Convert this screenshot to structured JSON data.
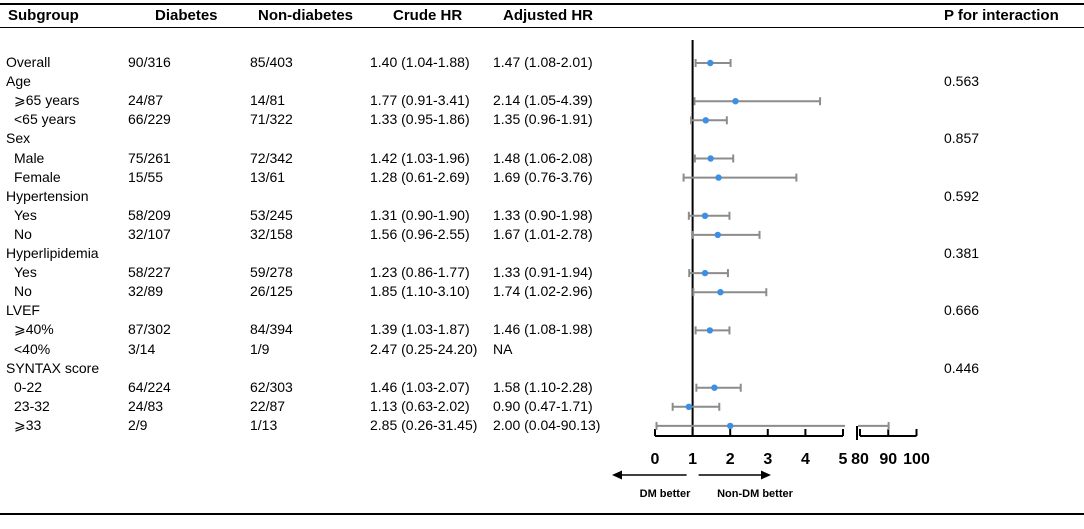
{
  "headers": {
    "subgroup": "Subgroup",
    "diabetes": "Diabetes",
    "nondiabetes": "Non-diabetes",
    "crude": "Crude HR",
    "adjusted": "Adjusted HR",
    "pint": "P for interaction"
  },
  "rows": [
    {
      "label": "Overall",
      "indent": false,
      "diabetes": "90/316",
      "nondiabetes": "85/403",
      "crude": "1.40 (1.04-1.88)",
      "adjusted": "1.47 (1.08-2.01)",
      "p": ""
    },
    {
      "label": "Age",
      "indent": false,
      "diabetes": "",
      "nondiabetes": "",
      "crude": "",
      "adjusted": "",
      "p": "0.563"
    },
    {
      "label": "⩾65 years",
      "indent": true,
      "diabetes": "24/87",
      "nondiabetes": "14/81",
      "crude": "1.77 (0.91-3.41)",
      "adjusted": "2.14 (1.05-4.39)",
      "p": ""
    },
    {
      "label": "<65 years",
      "indent": true,
      "diabetes": "66/229",
      "nondiabetes": "71/322",
      "crude": "1.33 (0.95-1.86)",
      "adjusted": "1.35 (0.96-1.91)",
      "p": ""
    },
    {
      "label": "Sex",
      "indent": false,
      "diabetes": "",
      "nondiabetes": "",
      "crude": "",
      "adjusted": "",
      "p": "0.857"
    },
    {
      "label": "Male",
      "indent": true,
      "diabetes": "75/261",
      "nondiabetes": "72/342",
      "crude": "1.42 (1.03-1.96)",
      "adjusted": "1.48 (1.06-2.08)",
      "p": ""
    },
    {
      "label": "Female",
      "indent": true,
      "diabetes": "15/55",
      "nondiabetes": "13/61",
      "crude": "1.28 (0.61-2.69)",
      "adjusted": "1.69 (0.76-3.76)",
      "p": ""
    },
    {
      "label": "Hypertension",
      "indent": false,
      "diabetes": "",
      "nondiabetes": "",
      "crude": "",
      "adjusted": "",
      "p": "0.592"
    },
    {
      "label": "Yes",
      "indent": true,
      "diabetes": "58/209",
      "nondiabetes": "53/245",
      "crude": "1.31 (0.90-1.90)",
      "adjusted": "1.33 (0.90-1.98)",
      "p": ""
    },
    {
      "label": "No",
      "indent": true,
      "diabetes": "32/107",
      "nondiabetes": "32/158",
      "crude": "1.56 (0.96-2.55)",
      "adjusted": "1.67 (1.01-2.78)",
      "p": ""
    },
    {
      "label": "Hyperlipidemia",
      "indent": false,
      "diabetes": "",
      "nondiabetes": "",
      "crude": "",
      "adjusted": "",
      "p": "0.381"
    },
    {
      "label": "Yes",
      "indent": true,
      "diabetes": "58/227",
      "nondiabetes": "59/278",
      "crude": "1.23 (0.86-1.77)",
      "adjusted": "1.33 (0.91-1.94)",
      "p": ""
    },
    {
      "label": "No",
      "indent": true,
      "diabetes": "32/89",
      "nondiabetes": "26/125",
      "crude": "1.85 (1.10-3.10)",
      "adjusted": "1.74 (1.02-2.96)",
      "p": ""
    },
    {
      "label": "LVEF",
      "indent": false,
      "diabetes": "",
      "nondiabetes": "",
      "crude": "",
      "adjusted": "",
      "p": "0.666"
    },
    {
      "label": "⩾40%",
      "indent": true,
      "diabetes": "87/302",
      "nondiabetes": "84/394",
      "crude": "1.39 (1.03-1.87)",
      "adjusted": "1.46 (1.08-1.98)",
      "p": ""
    },
    {
      "label": "<40%",
      "indent": true,
      "diabetes": "3/14",
      "nondiabetes": "1/9",
      "crude": "2.47 (0.25-24.20)",
      "adjusted": "NA",
      "p": ""
    },
    {
      "label": "SYNTAX score",
      "indent": false,
      "diabetes": "",
      "nondiabetes": "",
      "crude": "",
      "adjusted": "",
      "p": "0.446"
    },
    {
      "label": "0-22",
      "indent": true,
      "diabetes": "64/224",
      "nondiabetes": "62/303",
      "crude": "1.46 (1.03-2.07)",
      "adjusted": "1.58 (1.10-2.28)",
      "p": ""
    },
    {
      "label": "23-32",
      "indent": true,
      "diabetes": "24/83",
      "nondiabetes": "22/87",
      "crude": "1.13 (0.63-2.02)",
      "adjusted": "0.90 (0.47-1.71)",
      "p": ""
    },
    {
      "label": "⩾33",
      "indent": true,
      "diabetes": "2/9",
      "nondiabetes": "1/13",
      "crude": "2.85 (0.26-31.45)",
      "adjusted": "2.00 (0.04-90.13)",
      "p": ""
    }
  ],
  "chart_data": {
    "type": "forest",
    "title": "",
    "xlabel": "",
    "reference_line": 1,
    "axis_segments": [
      {
        "ticks": [
          0,
          1,
          2,
          3,
          4,
          5
        ],
        "range": [
          0,
          5
        ]
      },
      {
        "ticks": [
          80,
          90,
          100
        ],
        "range": [
          80,
          100
        ]
      }
    ],
    "tick_labels": [
      "0",
      "1",
      "2",
      "3",
      "4",
      "5",
      "80",
      "90",
      "100"
    ],
    "direction_labels": {
      "left": "DM better",
      "right": "Non-DM better"
    },
    "point_color": "#3d8fe6",
    "ci_color": "#8c8c8c",
    "estimates": [
      {
        "row": 0,
        "hr": 1.47,
        "low": 1.08,
        "high": 2.01
      },
      {
        "row": 2,
        "hr": 2.14,
        "low": 1.05,
        "high": 4.39
      },
      {
        "row": 3,
        "hr": 1.35,
        "low": 0.96,
        "high": 1.91
      },
      {
        "row": 5,
        "hr": 1.48,
        "low": 1.06,
        "high": 2.08
      },
      {
        "row": 6,
        "hr": 1.69,
        "low": 0.76,
        "high": 3.76
      },
      {
        "row": 8,
        "hr": 1.33,
        "low": 0.9,
        "high": 1.98
      },
      {
        "row": 9,
        "hr": 1.67,
        "low": 1.01,
        "high": 2.78
      },
      {
        "row": 11,
        "hr": 1.33,
        "low": 0.91,
        "high": 1.94
      },
      {
        "row": 12,
        "hr": 1.74,
        "low": 1.02,
        "high": 2.96
      },
      {
        "row": 14,
        "hr": 1.46,
        "low": 1.08,
        "high": 1.98
      },
      {
        "row": 17,
        "hr": 1.58,
        "low": 1.1,
        "high": 2.28
      },
      {
        "row": 18,
        "hr": 0.9,
        "low": 0.47,
        "high": 1.71
      },
      {
        "row": 19,
        "hr": 2.0,
        "low": 0.04,
        "high": 90.13
      }
    ]
  }
}
